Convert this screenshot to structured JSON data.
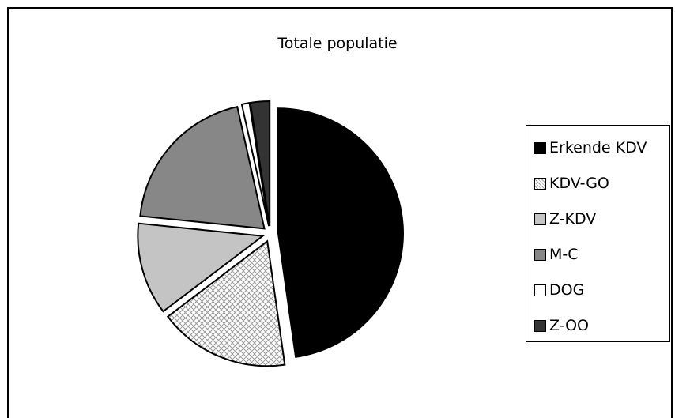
{
  "chart_data": {
    "type": "pie",
    "title": "Totale populatie",
    "slices": [
      {
        "label": "Erkende KDV",
        "value": 48,
        "color": "#000000",
        "pattern": "solid"
      },
      {
        "label": "KDV-GO",
        "value": 17,
        "color": "#e8e8e8",
        "pattern": "crosshatch"
      },
      {
        "label": "Z-KDV",
        "value": 12,
        "color": "#c4c4c4",
        "pattern": "solid"
      },
      {
        "label": "M-C",
        "value": 20,
        "color": "#878787",
        "pattern": "solid"
      },
      {
        "label": "DOG",
        "value": 1,
        "color": "#ffffff",
        "pattern": "solid"
      },
      {
        "label": "Z-OO",
        "value": 2.5,
        "color": "#333333",
        "pattern": "solid"
      }
    ],
    "legend_position": "right"
  }
}
